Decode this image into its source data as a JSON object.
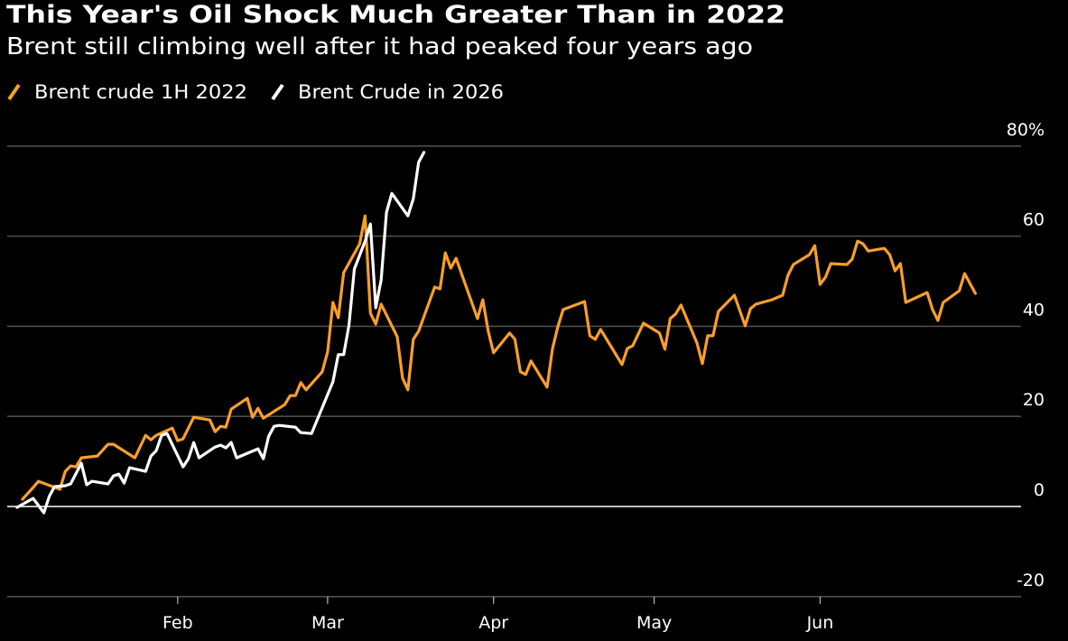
{
  "colors": {
    "background": "#000000",
    "series_2022": "#fa9f2a",
    "series_2026": "#ffffff",
    "grid": "#4d4d4d",
    "zero_line": "#ffffff"
  },
  "chart_data": {
    "type": "line",
    "title": "This Year's Oil Shock Much Greater Than in 2022",
    "subtitle": "Brent still climbing well after it had peaked four years ago",
    "xlabel": "",
    "ylabel": "",
    "ylim": [
      -20,
      80
    ],
    "yticks": [
      -20,
      0,
      20,
      40,
      60,
      80
    ],
    "ytick_labels": [
      "-20",
      "0",
      "20",
      "40",
      "60",
      "80%"
    ],
    "xtick_labels": [
      "Feb",
      "Mar",
      "Apr",
      "May",
      "Jun"
    ],
    "xtick_dates": [
      "02-01",
      "03-01",
      "04-01",
      "05-01",
      "06-01"
    ],
    "grid": true,
    "legend_position": "top-left",
    "y_axis_side": "right",
    "series": [
      {
        "name": "Brent crude 1H 2022",
        "color": "#fa9f2a",
        "points": [
          [
            "01-03",
            1.6
          ],
          [
            "01-05",
            4.2
          ],
          [
            "01-06",
            5.6
          ],
          [
            "01-10",
            3.8
          ],
          [
            "01-11",
            7.8
          ],
          [
            "01-12",
            9.0
          ],
          [
            "01-13",
            8.8
          ],
          [
            "01-14",
            10.8
          ],
          [
            "01-17",
            11.2
          ],
          [
            "01-19",
            13.8
          ],
          [
            "01-20",
            13.8
          ],
          [
            "01-24",
            10.8
          ],
          [
            "01-26",
            15.8
          ],
          [
            "01-27",
            14.8
          ],
          [
            "01-28",
            15.8
          ],
          [
            "01-31",
            17.4
          ],
          [
            "02-01",
            14.6
          ],
          [
            "02-02",
            15.0
          ],
          [
            "02-04",
            19.8
          ],
          [
            "02-07",
            19.2
          ],
          [
            "02-08",
            16.6
          ],
          [
            "02-09",
            17.8
          ],
          [
            "02-10",
            17.6
          ],
          [
            "02-11",
            21.6
          ],
          [
            "02-14",
            24.0
          ],
          [
            "02-15",
            19.8
          ],
          [
            "02-16",
            21.8
          ],
          [
            "02-17",
            19.6
          ],
          [
            "02-21",
            22.6
          ],
          [
            "02-22",
            24.6
          ],
          [
            "02-23",
            24.6
          ],
          [
            "02-24",
            27.5
          ],
          [
            "02-25",
            25.9
          ],
          [
            "02-28",
            29.9
          ],
          [
            "03-01",
            34.3
          ],
          [
            "03-02",
            45.3
          ],
          [
            "03-03",
            41.9
          ],
          [
            "03-04",
            51.9
          ],
          [
            "03-07",
            58.3
          ],
          [
            "03-08",
            64.5
          ],
          [
            "03-09",
            42.9
          ],
          [
            "03-10",
            40.5
          ],
          [
            "03-11",
            44.9
          ],
          [
            "03-14",
            37.7
          ],
          [
            "03-15",
            28.5
          ],
          [
            "03-16",
            25.9
          ],
          [
            "03-17",
            37.1
          ],
          [
            "03-18",
            38.9
          ],
          [
            "03-21",
            48.7
          ],
          [
            "03-22",
            48.3
          ],
          [
            "03-23",
            56.3
          ],
          [
            "03-24",
            52.9
          ],
          [
            "03-25",
            55.1
          ],
          [
            "03-29",
            41.7
          ],
          [
            "03-30",
            45.9
          ],
          [
            "03-31",
            38.9
          ],
          [
            "04-01",
            34.1
          ],
          [
            "04-04",
            38.5
          ],
          [
            "04-05",
            37.1
          ],
          [
            "04-06",
            29.9
          ],
          [
            "04-07",
            29.3
          ],
          [
            "04-08",
            32.3
          ],
          [
            "04-11",
            26.5
          ],
          [
            "04-12",
            34.9
          ],
          [
            "04-13",
            39.9
          ],
          [
            "04-14",
            43.7
          ],
          [
            "04-18",
            45.5
          ],
          [
            "04-19",
            37.9
          ],
          [
            "04-20",
            37.1
          ],
          [
            "04-21",
            39.3
          ],
          [
            "04-25",
            31.5
          ],
          [
            "04-26",
            35.1
          ],
          [
            "04-27",
            35.7
          ],
          [
            "04-29",
            40.7
          ],
          [
            "05-02",
            38.5
          ],
          [
            "05-03",
            34.9
          ],
          [
            "05-04",
            41.7
          ],
          [
            "05-05",
            42.7
          ],
          [
            "05-06",
            44.7
          ],
          [
            "05-09",
            36.3
          ],
          [
            "05-10",
            31.7
          ],
          [
            "05-11",
            37.9
          ],
          [
            "05-12",
            37.9
          ],
          [
            "05-13",
            43.3
          ],
          [
            "05-16",
            46.9
          ],
          [
            "05-18",
            40.1
          ],
          [
            "05-19",
            43.9
          ],
          [
            "05-20",
            44.9
          ],
          [
            "05-23",
            45.9
          ],
          [
            "05-25",
            46.9
          ],
          [
            "05-26",
            51.3
          ],
          [
            "05-27",
            53.7
          ],
          [
            "05-30",
            55.9
          ],
          [
            "05-31",
            57.9
          ],
          [
            "06-01",
            49.3
          ],
          [
            "06-02",
            50.9
          ],
          [
            "06-03",
            53.9
          ],
          [
            "06-06",
            53.7
          ],
          [
            "06-07",
            54.9
          ],
          [
            "06-08",
            58.9
          ],
          [
            "06-09",
            58.3
          ],
          [
            "06-10",
            56.7
          ],
          [
            "06-13",
            57.3
          ],
          [
            "06-14",
            55.9
          ],
          [
            "06-15",
            52.3
          ],
          [
            "06-16",
            53.9
          ],
          [
            "06-17",
            45.3
          ],
          [
            "06-21",
            47.5
          ],
          [
            "06-22",
            43.7
          ],
          [
            "06-23",
            41.3
          ],
          [
            "06-24",
            45.3
          ],
          [
            "06-27",
            47.9
          ],
          [
            "06-28",
            51.7
          ],
          [
            "06-30",
            47.3
          ]
        ]
      },
      {
        "name": "Brent Crude in 2026",
        "color": "#ffffff",
        "points": [
          [
            "01-02",
            -0.2
          ],
          [
            "01-05",
            1.8
          ],
          [
            "01-07",
            -1.4
          ],
          [
            "01-08",
            2.2
          ],
          [
            "01-09",
            4.4
          ],
          [
            "01-11",
            4.6
          ],
          [
            "01-12",
            5.0
          ],
          [
            "01-14",
            9.6
          ],
          [
            "01-15",
            4.8
          ],
          [
            "01-16",
            5.6
          ],
          [
            "01-19",
            5.0
          ],
          [
            "01-20",
            6.8
          ],
          [
            "01-21",
            7.2
          ],
          [
            "01-22",
            5.2
          ],
          [
            "01-23",
            8.6
          ],
          [
            "01-26",
            7.8
          ],
          [
            "01-27",
            11.2
          ],
          [
            "01-28",
            12.4
          ],
          [
            "01-29",
            15.8
          ],
          [
            "01-30",
            16.2
          ],
          [
            "02-02",
            8.8
          ],
          [
            "02-03",
            10.6
          ],
          [
            "02-04",
            14.2
          ],
          [
            "02-05",
            10.8
          ],
          [
            "02-08",
            13.2
          ],
          [
            "02-09",
            13.6
          ],
          [
            "02-10",
            13.0
          ],
          [
            "02-11",
            14.2
          ],
          [
            "02-12",
            10.8
          ],
          [
            "02-16",
            12.8
          ],
          [
            "02-17",
            10.6
          ],
          [
            "02-18",
            15.6
          ],
          [
            "02-19",
            17.8
          ],
          [
            "02-20",
            18.0
          ],
          [
            "02-23",
            17.6
          ],
          [
            "02-24",
            16.4
          ],
          [
            "02-26",
            16.2
          ],
          [
            "03-02",
            27.7
          ],
          [
            "03-03",
            33.7
          ],
          [
            "03-04",
            33.7
          ],
          [
            "03-05",
            40.3
          ],
          [
            "03-06",
            52.7
          ],
          [
            "03-08",
            58.9
          ],
          [
            "03-09",
            62.7
          ],
          [
            "03-10",
            44.1
          ],
          [
            "03-11",
            50.3
          ],
          [
            "03-12",
            65.3
          ],
          [
            "03-13",
            69.5
          ],
          [
            "03-16",
            64.5
          ],
          [
            "03-17",
            68.3
          ],
          [
            "03-18",
            76.4
          ],
          [
            "03-19",
            78.6
          ]
        ]
      }
    ]
  }
}
